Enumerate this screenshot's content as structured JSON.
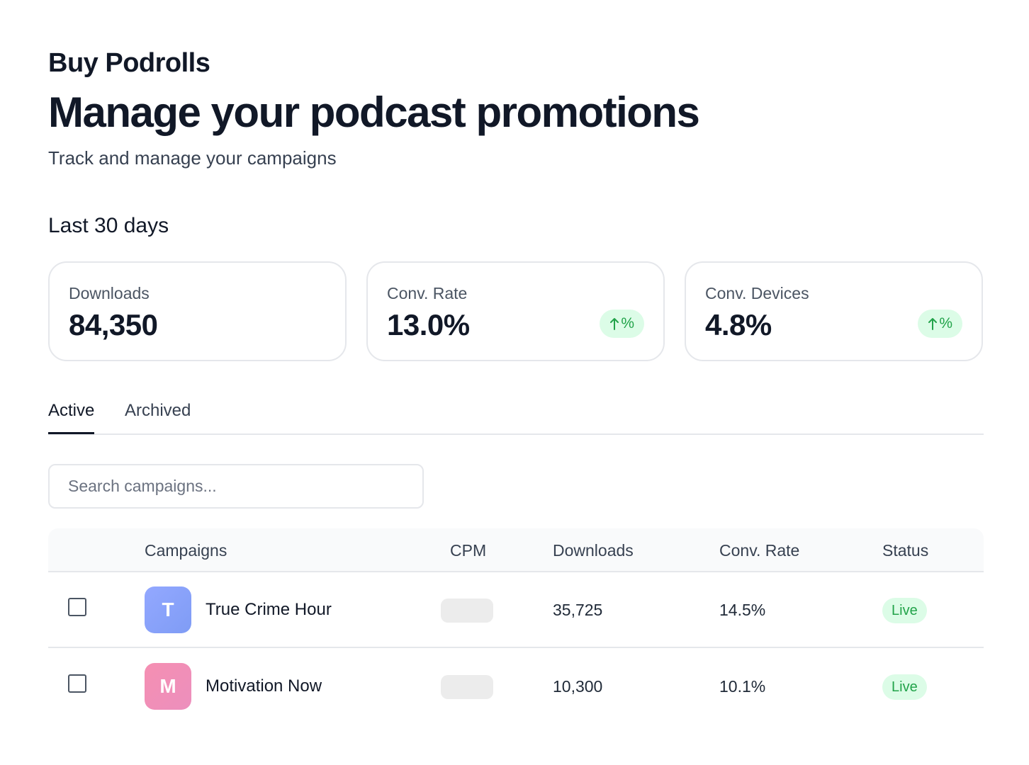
{
  "header": {
    "brand": "Buy Podrolls",
    "title": "Manage your podcast promotions",
    "subtitle": "Track and manage your campaigns"
  },
  "period_label": "Last 30 days",
  "stats": [
    {
      "label": "Downloads",
      "value": "84,350"
    },
    {
      "label": "Conv. Rate",
      "value": "13.0%",
      "trend": "%",
      "trend_icon": "arrow-up-icon",
      "trend_color": "#22a34a"
    },
    {
      "label": "Conv. Devices",
      "value": "4.8%",
      "trend": "%",
      "trend_icon": "arrow-up-icon",
      "trend_color": "#22a34a"
    }
  ],
  "tabs": [
    {
      "label": "Active",
      "selected": true
    },
    {
      "label": "Archived",
      "selected": false
    }
  ],
  "search": {
    "placeholder": "Search campaigns...",
    "value": ""
  },
  "table": {
    "columns": [
      "Campaigns",
      "CPM",
      "Downloads",
      "Conv. Rate",
      "Status"
    ],
    "rows": [
      {
        "initial": "T",
        "avatar_color": "#8ea3fb",
        "name": "True Crime Hour",
        "cpm": "",
        "downloads": "35,725",
        "conv_rate": "14.5%",
        "status": "Live"
      },
      {
        "initial": "M",
        "avatar_color": "#ef90b7",
        "name": "Motivation Now",
        "cpm": "",
        "downloads": "10,300",
        "conv_rate": "10.1%",
        "status": "Live"
      }
    ]
  },
  "colors": {
    "accent_green": "#22a34a",
    "badge_green_bg": "#dcfce7",
    "text_primary": "#111827"
  }
}
